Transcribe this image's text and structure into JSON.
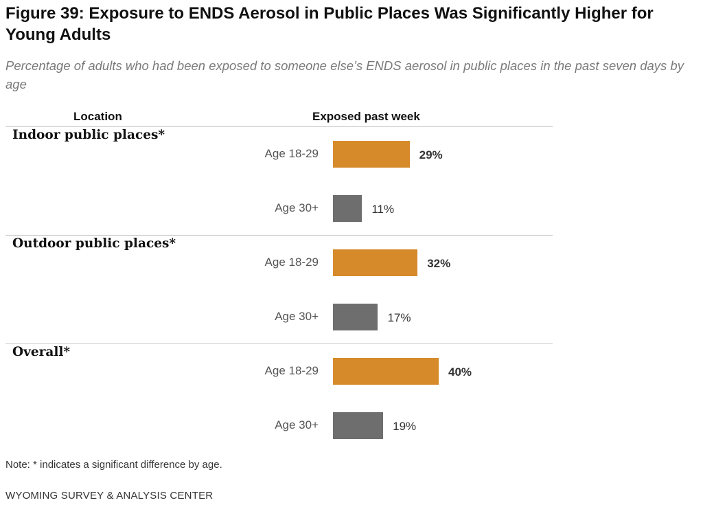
{
  "title": "Figure 39: Exposure to ENDS Aerosol in Public Places Was Significantly Higher for Young Adults",
  "subtitle": "Percentage of adults who had been exposed to someone else’s ENDS aerosol in public places in the past seven days by age",
  "columns": {
    "location": "Location",
    "measure": "Exposed past week"
  },
  "note": "Note: * indicates a significant difference by age.",
  "source": "WYOMING SURVEY & ANALYSIS CENTER",
  "colors": {
    "young": "#D68A2A",
    "older": "#6E6E6E"
  },
  "chart_data": {
    "type": "bar",
    "orientation": "horizontal",
    "groups": [
      {
        "name": "Indoor public places*",
        "bars": [
          {
            "category": "Age 18-29",
            "value": 29,
            "label": "29%",
            "highlight": true
          },
          {
            "category": "Age 30+",
            "value": 11,
            "label": "11%",
            "highlight": false
          }
        ]
      },
      {
        "name": "Outdoor public places*",
        "bars": [
          {
            "category": "Age 18-29",
            "value": 32,
            "label": "32%",
            "highlight": true
          },
          {
            "category": "Age 30+",
            "value": 17,
            "label": "17%",
            "highlight": false
          }
        ]
      },
      {
        "name": "Overall*",
        "bars": [
          {
            "category": "Age 18-29",
            "value": 40,
            "label": "40%",
            "highlight": true
          },
          {
            "category": "Age 30+",
            "value": 19,
            "label": "19%",
            "highlight": false
          }
        ]
      }
    ],
    "xlim": [
      0,
      100
    ],
    "grid": false
  }
}
